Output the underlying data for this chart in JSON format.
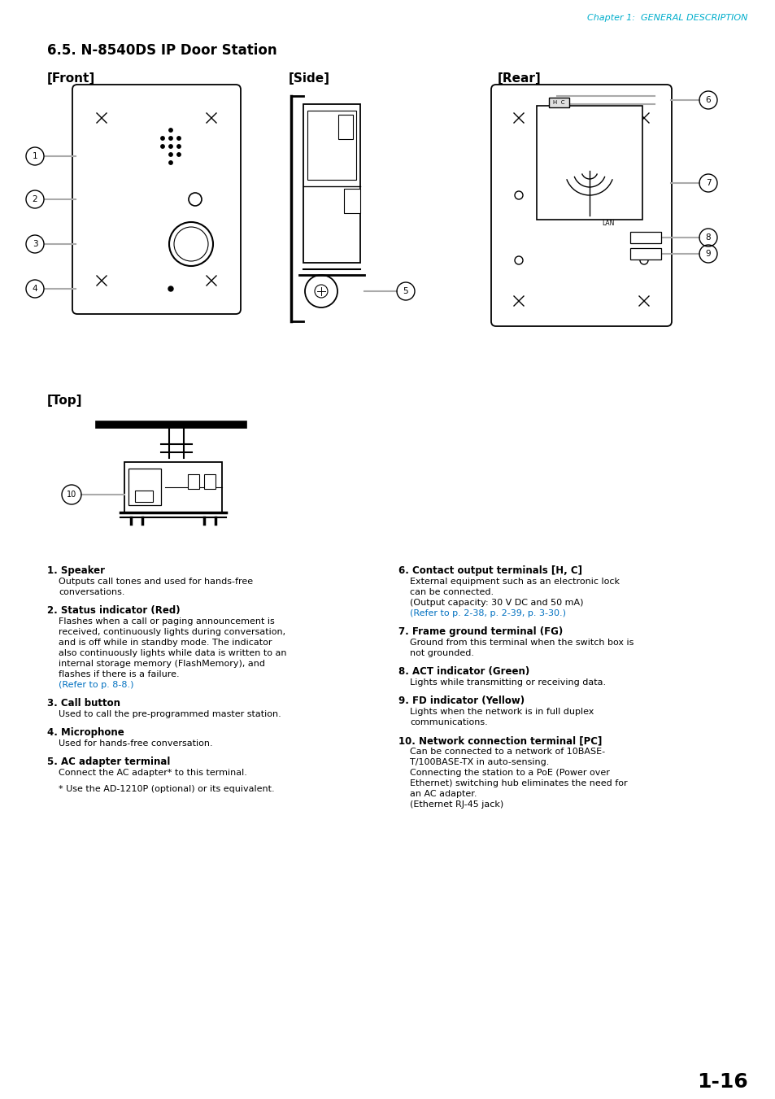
{
  "page_bg": "#ffffff",
  "cyan_color": "#00AECC",
  "black": "#000000",
  "gray": "#aaaaaa",
  "blue_link": "#0070C0",
  "header_text": "Chapter 1:  GENERAL DESCRIPTION",
  "section_title": "6.5. N-8540DS IP Door Station",
  "front_label": "[Front]",
  "side_label": "[Side]",
  "rear_label": "[Rear]",
  "top_label": "[Top]",
  "page_number": "1-16",
  "descriptions": [
    {
      "num": "1.",
      "bold": "Speaker",
      "body_lines": [
        {
          "text": "Outputs call tones and used for hands-free",
          "blue": false
        },
        {
          "text": "conversations.",
          "blue": false
        }
      ]
    },
    {
      "num": "2.",
      "bold": "Status indicator (Red)",
      "body_lines": [
        {
          "text": "Flashes when a call or paging announcement is",
          "blue": false
        },
        {
          "text": "received, continuously lights during conversation,",
          "blue": false
        },
        {
          "text": "and is off while in standby mode. The indicator",
          "blue": false
        },
        {
          "text": "also continuously lights while data is written to an",
          "blue": false
        },
        {
          "text": "internal storage memory (FlashMemory), and",
          "blue": false
        },
        {
          "text": "flashes if there is a failure.",
          "blue": false
        },
        {
          "text": "(Refer to p. 8-8.)",
          "blue": true
        }
      ]
    },
    {
      "num": "3.",
      "bold": "Call button",
      "body_lines": [
        {
          "text": "Used to call the pre-programmed master station.",
          "blue": false
        }
      ]
    },
    {
      "num": "4.",
      "bold": "Microphone",
      "body_lines": [
        {
          "text": "Used for hands-free conversation.",
          "blue": false
        }
      ]
    },
    {
      "num": "5.",
      "bold": "AC adapter terminal",
      "body_lines": [
        {
          "text": "Connect the AC adapter* to this terminal.",
          "blue": false
        },
        {
          "text": "",
          "blue": false
        },
        {
          "text": "* Use the AD-1210P (optional) or its equivalent.",
          "blue": false
        }
      ]
    },
    {
      "num": "6.",
      "bold": "Contact output terminals [H, C]",
      "body_lines": [
        {
          "text": "External equipment such as an electronic lock",
          "blue": false
        },
        {
          "text": "can be connected.",
          "blue": false
        },
        {
          "text": "(Output capacity: 30 V DC and 50 mA)",
          "blue": false
        },
        {
          "text": "(Refer to p. 2-38, p. 2-39, p. 3-30.)",
          "blue": true
        }
      ]
    },
    {
      "num": "7.",
      "bold": "Frame ground terminal (FG)",
      "body_lines": [
        {
          "text": "Ground from this terminal when the switch box is",
          "blue": false
        },
        {
          "text": "not grounded.",
          "blue": false
        }
      ]
    },
    {
      "num": "8.",
      "bold": "ACT indicator (Green)",
      "body_lines": [
        {
          "text": "Lights while transmitting or receiving data.",
          "blue": false
        }
      ]
    },
    {
      "num": "9.",
      "bold": "FD indicator (Yellow)",
      "body_lines": [
        {
          "text": "Lights when the network is in full duplex",
          "blue": false
        },
        {
          "text": "communications.",
          "blue": false
        }
      ]
    },
    {
      "num": "10.",
      "bold": "Network connection terminal [PC]",
      "body_lines": [
        {
          "text": "Can be connected to a network of 10BASE-",
          "blue": false
        },
        {
          "text": "T/100BASE-TX in auto-sensing.",
          "blue": false
        },
        {
          "text": "Connecting the station to a PoE (Power over",
          "blue": false
        },
        {
          "text": "Ethernet) switching hub eliminates the need for",
          "blue": false
        },
        {
          "text": "an AC adapter.",
          "blue": false
        },
        {
          "text": "(Ethernet RJ-45 jack)",
          "blue": false
        }
      ]
    }
  ]
}
